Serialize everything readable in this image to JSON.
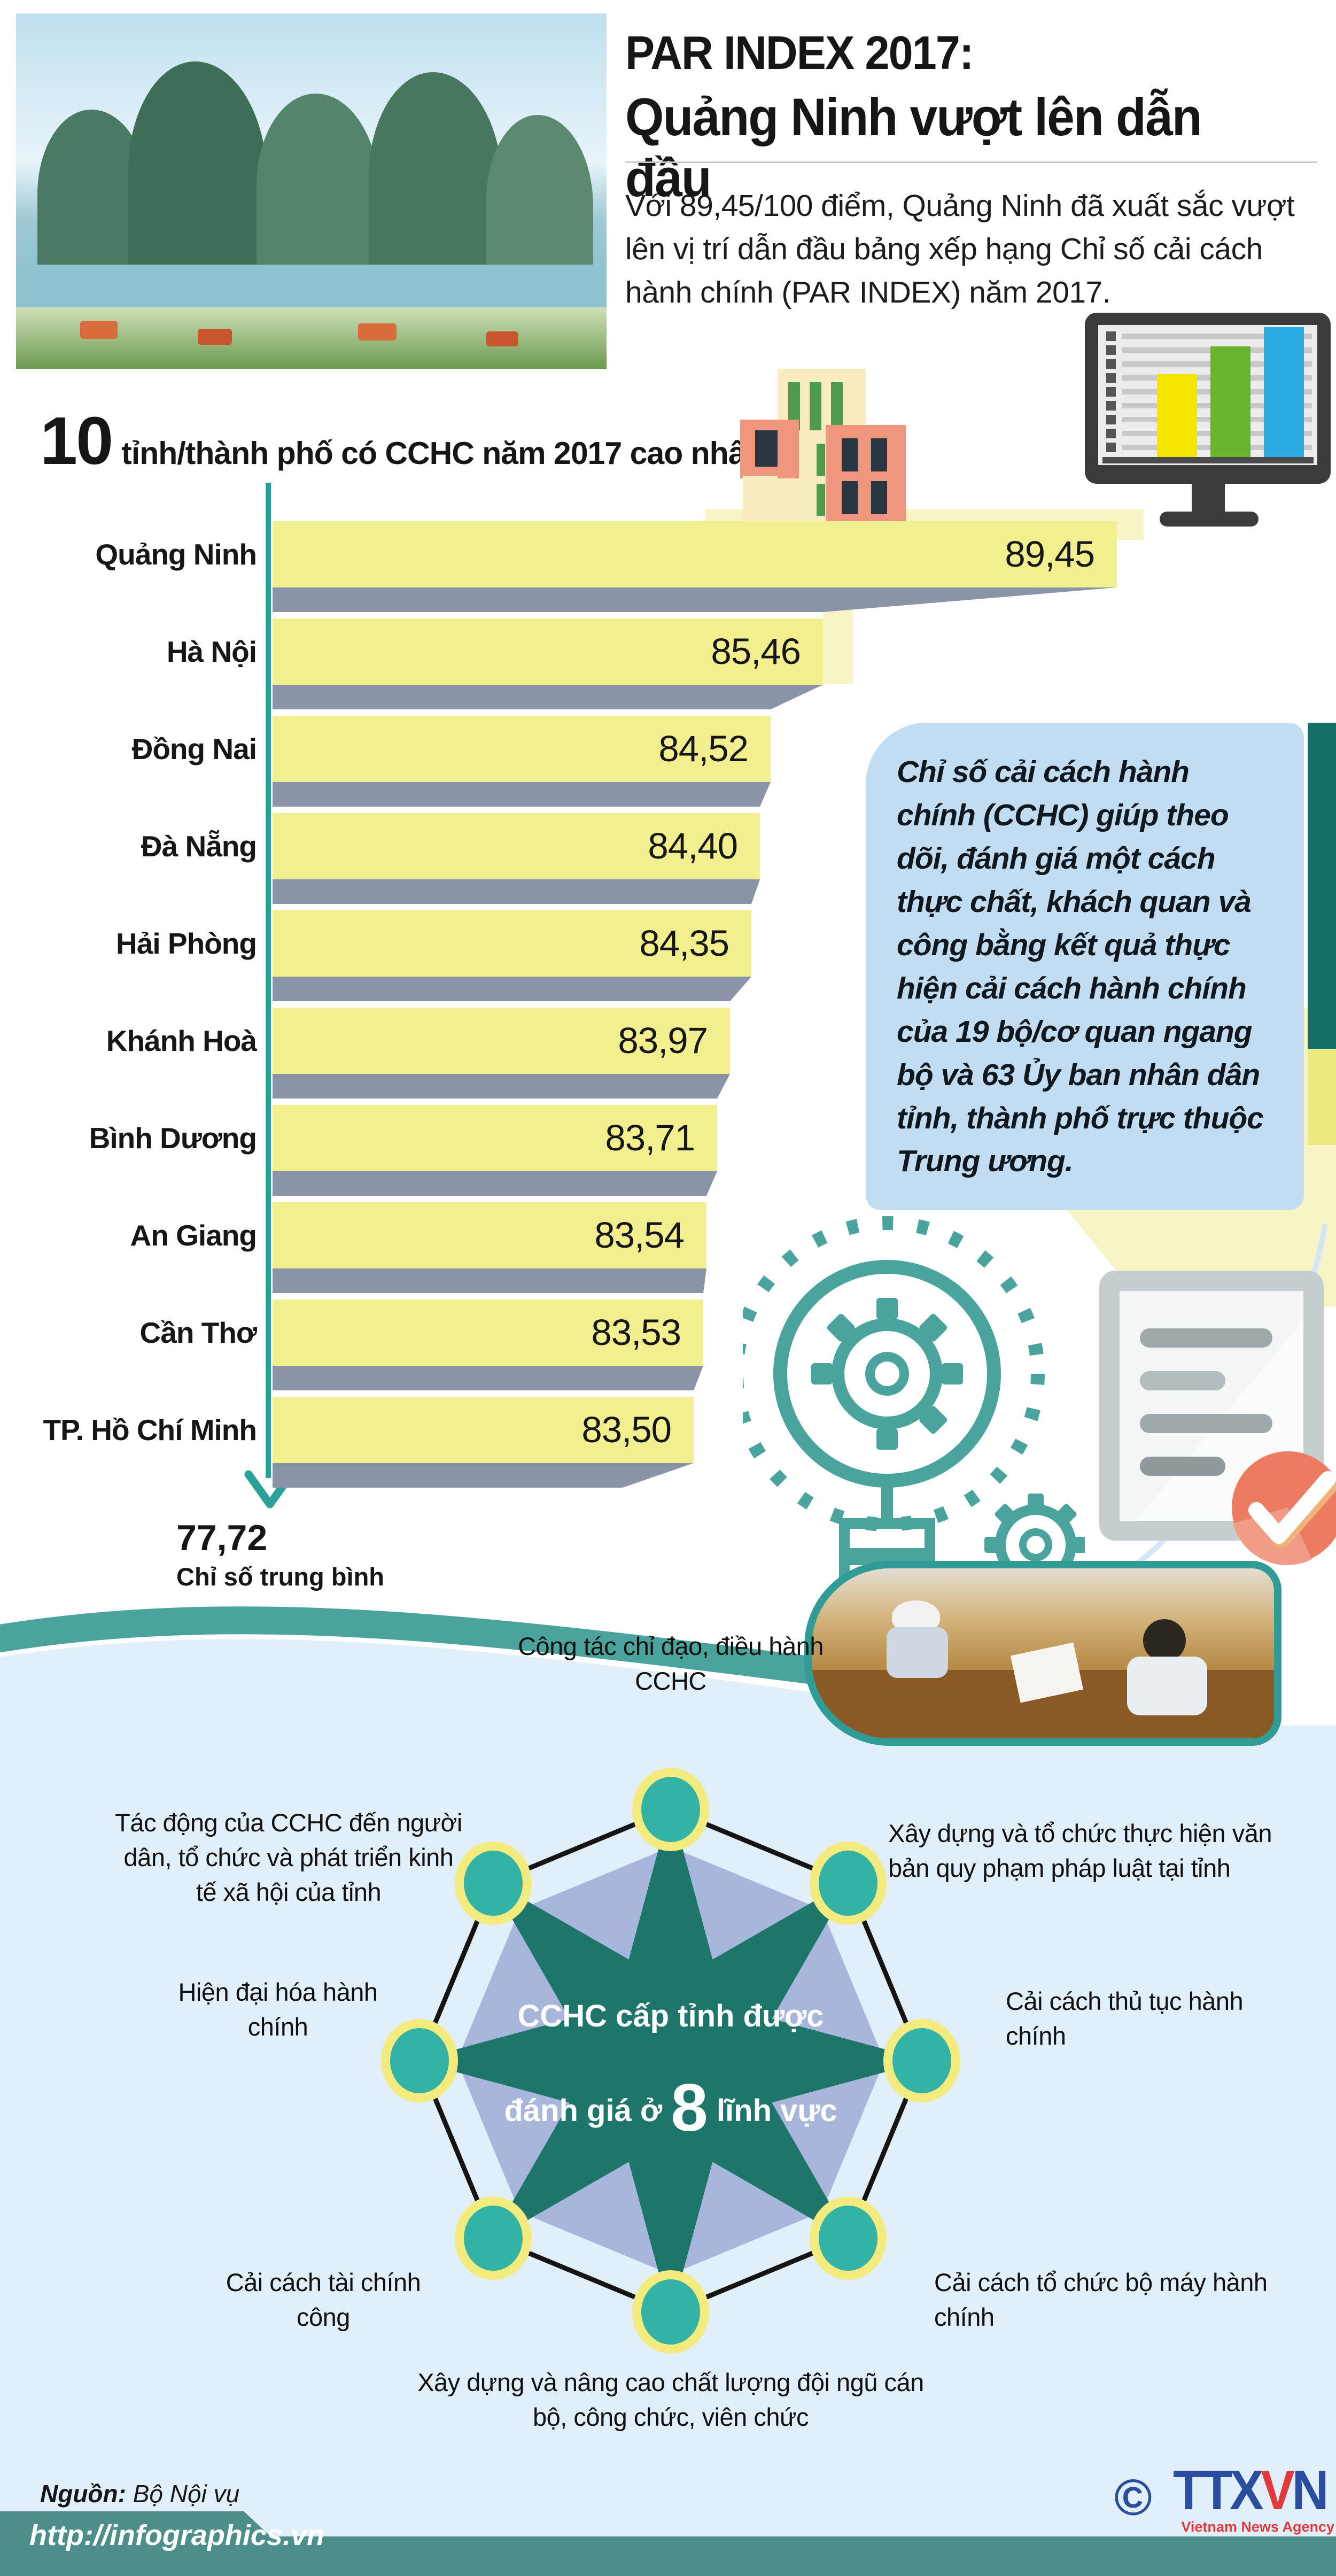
{
  "header": {
    "title_line1": "PAR INDEX 2017:",
    "title_line2": "Quảng Ninh vượt lên dẫn đầu",
    "intro": "Với 89,45/100 điểm, Quảng Ninh đã xuất sắc vượt lên vị trí dẫn đầu bảng xếp hạng Chỉ số cải cách hành chính (PAR INDEX) năm 2017."
  },
  "chart": {
    "heading_number": "10",
    "heading_text": "tỉnh/thành phố có CCHC năm 2017 cao nhất",
    "rows": [
      {
        "label": "Quảng Ninh",
        "value": "89,45"
      },
      {
        "label": "Hà Nội",
        "value": "85,46"
      },
      {
        "label": "Đồng Nai",
        "value": "84,52"
      },
      {
        "label": "Đà Nẵng",
        "value": "84,40"
      },
      {
        "label": "Hải Phòng",
        "value": "84,35"
      },
      {
        "label": "Khánh Hoà",
        "value": "83,97"
      },
      {
        "label": "Bình Dương",
        "value": "83,71"
      },
      {
        "label": "An Giang",
        "value": "83,54"
      },
      {
        "label": "Cần Thơ",
        "value": "83,53"
      },
      {
        "label": "TP. Hồ Chí Minh",
        "value": "83,50"
      }
    ],
    "average_value": "77,72",
    "average_label": "Chỉ số trung bình"
  },
  "note": {
    "text": "Chỉ số cải cách hành chính (CCHC) giúp theo dõi, đánh giá một cách thực chất, khách quan và công bằng kết quả thực hiện cải cách hành chính của 19 bộ/cơ quan ngang bộ và 63 Ủy ban nhân dân tỉnh, thành phố trực thuộc Trung ương."
  },
  "diagram": {
    "center_line1": "CCHC cấp tỉnh được",
    "center_line2_prefix": "đánh giá ở ",
    "center_line2_big": "8",
    "center_line2_suffix": " lĩnh vực",
    "labels": {
      "top": "Công tác chỉ đạo, điều hành CCHC",
      "top_right": "Xây dựng và tổ chức thực hiện văn bản quy phạm pháp luật tại tỉnh",
      "right": "Cải cách thủ tục hành chính",
      "bottom_right": "Cải cách tổ chức bộ máy hành chính",
      "bottom": "Xây dựng và nâng cao chất lượng đội ngũ cán bộ, công chức, viên chức",
      "bottom_left": "Cải cách tài chính công",
      "left": "Hiện đại hóa hành chính",
      "top_left": "Tác động của CCHC đến người dân, tổ chức và phát triển kinh tế xã hội của tỉnh"
    }
  },
  "icons": {
    "buildings": "city-buildings",
    "monitor": "bar-chart-monitor",
    "lightbulb_gear": "idea-gears",
    "document_check": "approved-document",
    "arrow_down": "chevron-down-arrow"
  },
  "colors": {
    "bar_yellow": "#f2ef8f",
    "bar_shadow_gray": "#8a93a7",
    "axis_teal": "#2aa198",
    "note_blue": "#c2dcf2",
    "dark_teal": "#156f68",
    "star_teal": "#1e7569",
    "octagon_periwinkle": "#a8b6dc",
    "node_teal": "#33b2a6",
    "node_ring_yellow": "#f3eb7d",
    "section_blue": "#e0effa",
    "footer_teal": "#4e8e8a",
    "logo_blue": "#2b4da0",
    "logo_red": "#e23a3c"
  },
  "footer": {
    "source_label": "Nguồn:",
    "source_value": " Bộ Nội vụ",
    "url": "http://infographics.vn",
    "copyright": "©",
    "logo_t1": "TTX",
    "logo_v": "V",
    "logo_n": "N",
    "logo_sub": "Vietnam News Agency"
  },
  "chart_data": {
    "type": "bar",
    "orientation": "horizontal",
    "title": "10 tỉnh/thành phố có CCHC năm 2017 cao nhất",
    "categories": [
      "Quảng Ninh",
      "Hà Nội",
      "Đồng Nai",
      "Đà Nẵng",
      "Hải Phòng",
      "Khánh Hoà",
      "Bình Dương",
      "An Giang",
      "Cần Thơ",
      "TP. Hồ Chí Minh"
    ],
    "values": [
      89.45,
      85.46,
      84.52,
      84.4,
      84.35,
      83.97,
      83.71,
      83.54,
      83.53,
      83.5
    ],
    "average": 77.72,
    "average_label": "Chỉ số trung bình",
    "xlabel": "",
    "ylabel": "",
    "value_max": 100,
    "grid": false,
    "legend": false
  }
}
